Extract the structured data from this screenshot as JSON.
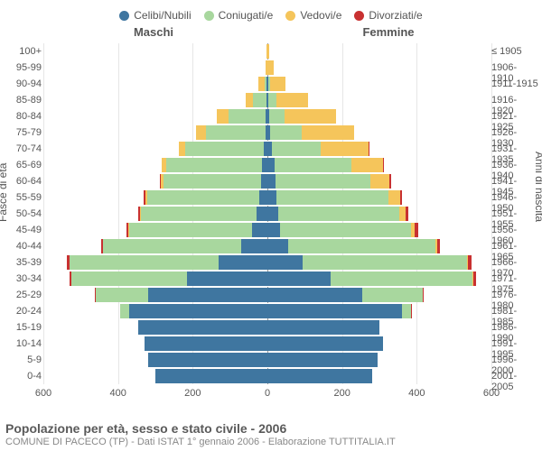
{
  "type": "population-pyramid",
  "legend": [
    {
      "label": "Celibi/Nubili",
      "color": "#3f76a0"
    },
    {
      "label": "Coniugati/e",
      "color": "#a8d79e"
    },
    {
      "label": "Vedovi/e",
      "color": "#f5c55b"
    },
    {
      "label": "Divorziati/e",
      "color": "#c83131"
    }
  ],
  "side_labels": {
    "male": "Maschi",
    "female": "Femmine"
  },
  "axis_titles": {
    "left": "Fasce di età",
    "right": "Anni di nascita"
  },
  "x_axis": {
    "max": 600,
    "ticks": [
      600,
      400,
      200,
      0,
      200,
      400,
      600
    ]
  },
  "bar_gap_pct": 8,
  "rows": [
    {
      "age": "100+",
      "birth": "≤ 1905",
      "m": [
        0,
        0,
        2,
        0
      ],
      "f": [
        0,
        0,
        4,
        0
      ]
    },
    {
      "age": "95-99",
      "birth": "1906-1910",
      "m": [
        0,
        0,
        5,
        0
      ],
      "f": [
        0,
        0,
        18,
        0
      ]
    },
    {
      "age": "90-94",
      "birth": "1911-1915",
      "m": [
        2,
        5,
        18,
        0
      ],
      "f": [
        2,
        5,
        42,
        0
      ]
    },
    {
      "age": "85-89",
      "birth": "1916-1920",
      "m": [
        3,
        35,
        20,
        0
      ],
      "f": [
        3,
        20,
        85,
        0
      ]
    },
    {
      "age": "80-84",
      "birth": "1921-1925",
      "m": [
        5,
        100,
        30,
        0
      ],
      "f": [
        5,
        40,
        140,
        0
      ]
    },
    {
      "age": "75-79",
      "birth": "1926-1930",
      "m": [
        5,
        160,
        25,
        0
      ],
      "f": [
        8,
        85,
        140,
        0
      ]
    },
    {
      "age": "70-74",
      "birth": "1931-1935",
      "m": [
        10,
        210,
        18,
        0
      ],
      "f": [
        12,
        130,
        130,
        2
      ]
    },
    {
      "age": "65-69",
      "birth": "1936-1940",
      "m": [
        15,
        255,
        12,
        2
      ],
      "f": [
        20,
        205,
        85,
        3
      ]
    },
    {
      "age": "60-64",
      "birth": "1941-1945",
      "m": [
        18,
        260,
        8,
        3
      ],
      "f": [
        22,
        255,
        50,
        5
      ]
    },
    {
      "age": "55-59",
      "birth": "1946-1950",
      "m": [
        22,
        300,
        5,
        4
      ],
      "f": [
        25,
        300,
        30,
        6
      ]
    },
    {
      "age": "50-54",
      "birth": "1951-1955",
      "m": [
        28,
        310,
        3,
        5
      ],
      "f": [
        28,
        325,
        18,
        7
      ]
    },
    {
      "age": "45-49",
      "birth": "1956-1960",
      "m": [
        40,
        330,
        2,
        5
      ],
      "f": [
        35,
        350,
        10,
        8
      ]
    },
    {
      "age": "40-44",
      "birth": "1961-1965",
      "m": [
        70,
        370,
        1,
        5
      ],
      "f": [
        55,
        395,
        5,
        7
      ]
    },
    {
      "age": "35-39",
      "birth": "1966-1970",
      "m": [
        130,
        400,
        0,
        6
      ],
      "f": [
        95,
        440,
        3,
        8
      ]
    },
    {
      "age": "30-34",
      "birth": "1971-1975",
      "m": [
        215,
        310,
        0,
        4
      ],
      "f": [
        170,
        380,
        2,
        6
      ]
    },
    {
      "age": "25-29",
      "birth": "1976-1980",
      "m": [
        320,
        140,
        0,
        2
      ],
      "f": [
        255,
        160,
        1,
        3
      ]
    },
    {
      "age": "20-24",
      "birth": "1981-1985",
      "m": [
        370,
        25,
        0,
        0
      ],
      "f": [
        360,
        25,
        0,
        1
      ]
    },
    {
      "age": "15-19",
      "birth": "1986-1990",
      "m": [
        345,
        0,
        0,
        0
      ],
      "f": [
        300,
        0,
        0,
        0
      ]
    },
    {
      "age": "10-14",
      "birth": "1991-1995",
      "m": [
        330,
        0,
        0,
        0
      ],
      "f": [
        310,
        0,
        0,
        0
      ]
    },
    {
      "age": "5-9",
      "birth": "1996-2000",
      "m": [
        320,
        0,
        0,
        0
      ],
      "f": [
        295,
        0,
        0,
        0
      ]
    },
    {
      "age": "0-4",
      "birth": "2001-2005",
      "m": [
        300,
        0,
        0,
        0
      ],
      "f": [
        280,
        0,
        0,
        0
      ]
    }
  ],
  "footer": {
    "title": "Popolazione per età, sesso e stato civile - 2006",
    "subtitle": "COMUNE DI PACECO (TP) - Dati ISTAT 1° gennaio 2006 - Elaborazione TUTTITALIA.IT"
  },
  "colors": {
    "grid": "#e6e6e6",
    "center": "#999999",
    "text": "#555555",
    "background": "#ffffff"
  }
}
